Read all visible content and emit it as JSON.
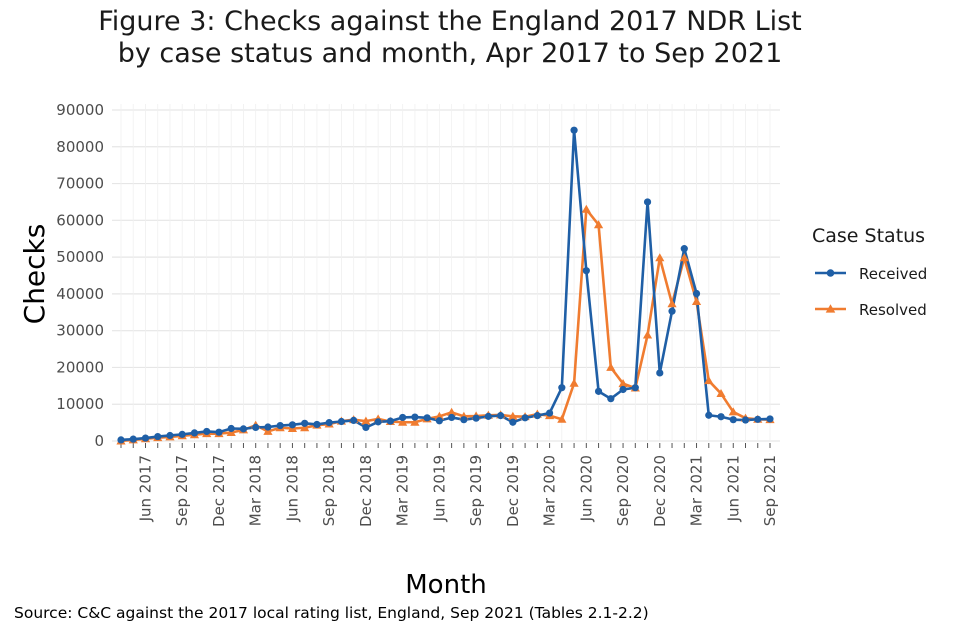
{
  "title_lines": [
    "Figure 3: Checks against the England 2017 NDR List",
    "by case status and month, Apr 2017 to Sep 2021"
  ],
  "source": "Source: C&C against the 2017 local rating list, England, Sep 2021 (Tables 2.1-2.2)",
  "colors": {
    "received": "#1f5fa6",
    "resolved": "#f07c30",
    "grid": "#e6e6e6"
  },
  "chart_data": {
    "type": "line",
    "xlabel": "Month",
    "ylabel": "Checks",
    "ylim": [
      0,
      90000
    ],
    "yticks": [
      0,
      10000,
      20000,
      30000,
      40000,
      50000,
      60000,
      70000,
      80000,
      90000
    ],
    "x_start": "Apr 2017",
    "x_end": "Sep 2021",
    "xtick_labels": [
      "Jun 2017",
      "Sep 2017",
      "Dec 2017",
      "Mar 2018",
      "Jun 2018",
      "Sep 2018",
      "Dec 2018",
      "Mar 2019",
      "Jun 2019",
      "Sep 2019",
      "Dec 2019",
      "Mar 2020",
      "Jun 2020",
      "Sep 2020",
      "Dec 2020",
      "Mar 2021",
      "Jun 2021",
      "Sep 2021"
    ],
    "xtick_month_index": [
      2,
      5,
      8,
      11,
      14,
      17,
      20,
      23,
      26,
      29,
      32,
      35,
      38,
      41,
      44,
      47,
      50,
      53
    ],
    "legend_title": "Case Status",
    "legend_position": "right",
    "series": [
      {
        "name": "Received",
        "marker": "circle",
        "values": [
          300,
          500,
          800,
          1200,
          1500,
          1800,
          2200,
          2600,
          2400,
          3400,
          3300,
          3700,
          3800,
          4200,
          4400,
          4800,
          4500,
          5000,
          5300,
          5600,
          3700,
          5200,
          5400,
          6400,
          6500,
          6300,
          5500,
          6400,
          5800,
          6200,
          6700,
          6900,
          5100,
          6300,
          6900,
          7600,
          14500,
          84500,
          46300,
          13500,
          11500,
          14000,
          14500,
          65000,
          18500,
          35300,
          52300,
          40100,
          7000,
          6600,
          5800,
          5700,
          5900,
          6000
        ]
      },
      {
        "name": "Resolved",
        "marker": "triangle",
        "values": [
          0,
          300,
          600,
          900,
          1100,
          1400,
          1700,
          2000,
          2000,
          2300,
          3000,
          4300,
          2600,
          3600,
          3400,
          3600,
          4300,
          4600,
          5400,
          5800,
          5400,
          6000,
          5300,
          5100,
          5100,
          6000,
          6700,
          7800,
          6700,
          6800,
          7000,
          7100,
          6700,
          6600,
          7300,
          6900,
          5900,
          15700,
          63000,
          58800,
          20000,
          15600,
          14400,
          28800,
          49800,
          37300,
          49800,
          37900,
          16400,
          12900,
          7900,
          6200,
          5900,
          5800
        ]
      }
    ]
  }
}
